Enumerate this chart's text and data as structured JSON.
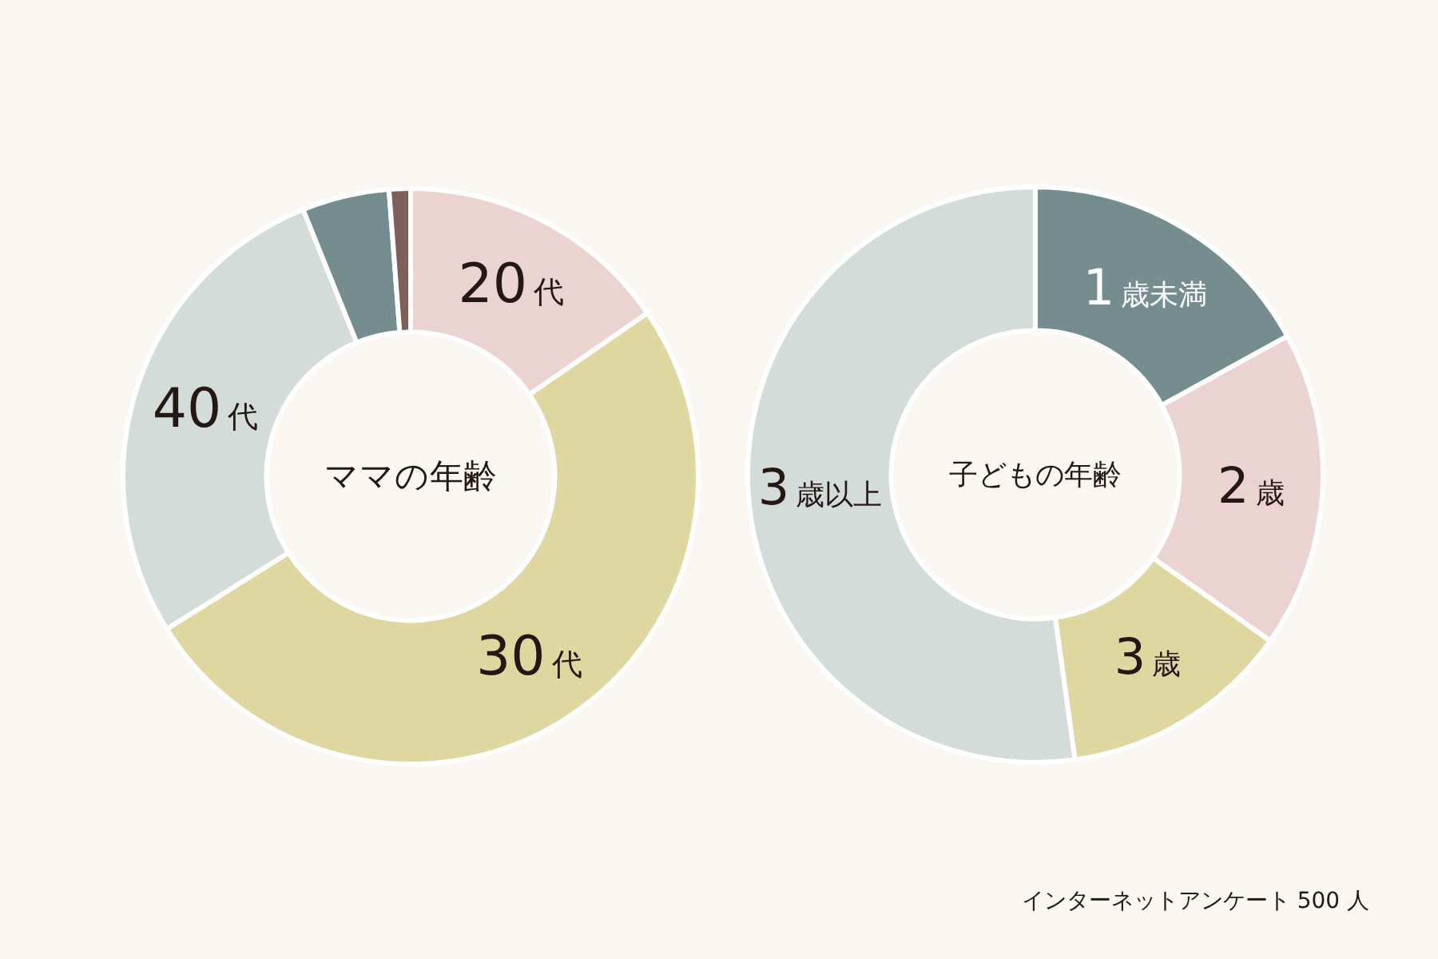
{
  "chart_data": [
    {
      "type": "donut",
      "title": "ママの年齢",
      "categories": [
        "20代",
        "30代",
        "40代",
        null,
        null
      ],
      "values": [
        15.4,
        50.7,
        27.8,
        4.9,
        1.2
      ],
      "colors": [
        "#ebd3d1",
        "#dfd7a0",
        "#d3dcd8",
        "#768d90",
        "#7f6058"
      ]
    },
    {
      "type": "donut",
      "title": "子どもの年齢",
      "categories": [
        "1歳未満",
        "2歳",
        "3歳",
        "3歳以上"
      ],
      "values": [
        17.0,
        17.8,
        13.0,
        52.2
      ],
      "colors": [
        "#768d90",
        "#ebd3d1",
        "#dfd7a0",
        "#d3dcd8"
      ],
      "annotations": [
        "インターネットアンケート 500 人"
      ]
    }
  ]
}
